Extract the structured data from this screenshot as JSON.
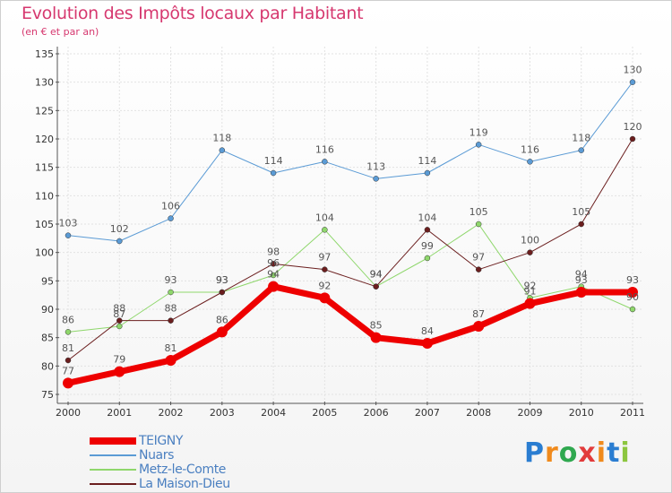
{
  "title": "Evolution des Impôts locaux par Habitant",
  "subtitle": "(en € et par an)",
  "logo": {
    "letters": [
      "P",
      "r",
      "o",
      "x",
      "i",
      "t",
      "i"
    ],
    "colors": [
      "#2a7dd1",
      "#f08a1c",
      "#2fa84f",
      "#e23b3b",
      "#f08a1c",
      "#2a7dd1",
      "#8cc63f"
    ]
  },
  "chart_data": {
    "type": "line",
    "x": [
      "2000",
      "2001",
      "2002",
      "2003",
      "2004",
      "2005",
      "2006",
      "2007",
      "2008",
      "2009",
      "2010",
      "2011"
    ],
    "ylim": [
      75,
      135
    ],
    "yticks": [
      75,
      80,
      85,
      90,
      95,
      100,
      105,
      110,
      115,
      120,
      125,
      130,
      135
    ],
    "grid": true,
    "legend_position": "bottom-left",
    "series": [
      {
        "name": "Nuars",
        "color": "#5b9bd5",
        "values": [
          103,
          102,
          106,
          118,
          114,
          116,
          113,
          114,
          119,
          116,
          118,
          130
        ],
        "width": 1
      },
      {
        "name": "Metz-le-Comte",
        "color": "#8fd76c",
        "values": [
          86,
          87,
          93,
          93,
          96,
          104,
          94,
          99,
          105,
          92,
          94,
          90
        ],
        "width": 1
      },
      {
        "name": "La Maison-Dieu",
        "color": "#6b1e1e",
        "values": [
          81,
          88,
          88,
          93,
          98,
          97,
          94,
          104,
          97,
          100,
          105,
          120
        ],
        "width": 1
      },
      {
        "name": "TEIGNY",
        "color": "#ee0000",
        "values": [
          77,
          79,
          81,
          86,
          94,
          92,
          85,
          84,
          87,
          91,
          93,
          93
        ],
        "width": 7
      }
    ],
    "legend_order": [
      "TEIGNY",
      "Nuars",
      "Metz-le-Comte",
      "La Maison-Dieu"
    ]
  }
}
